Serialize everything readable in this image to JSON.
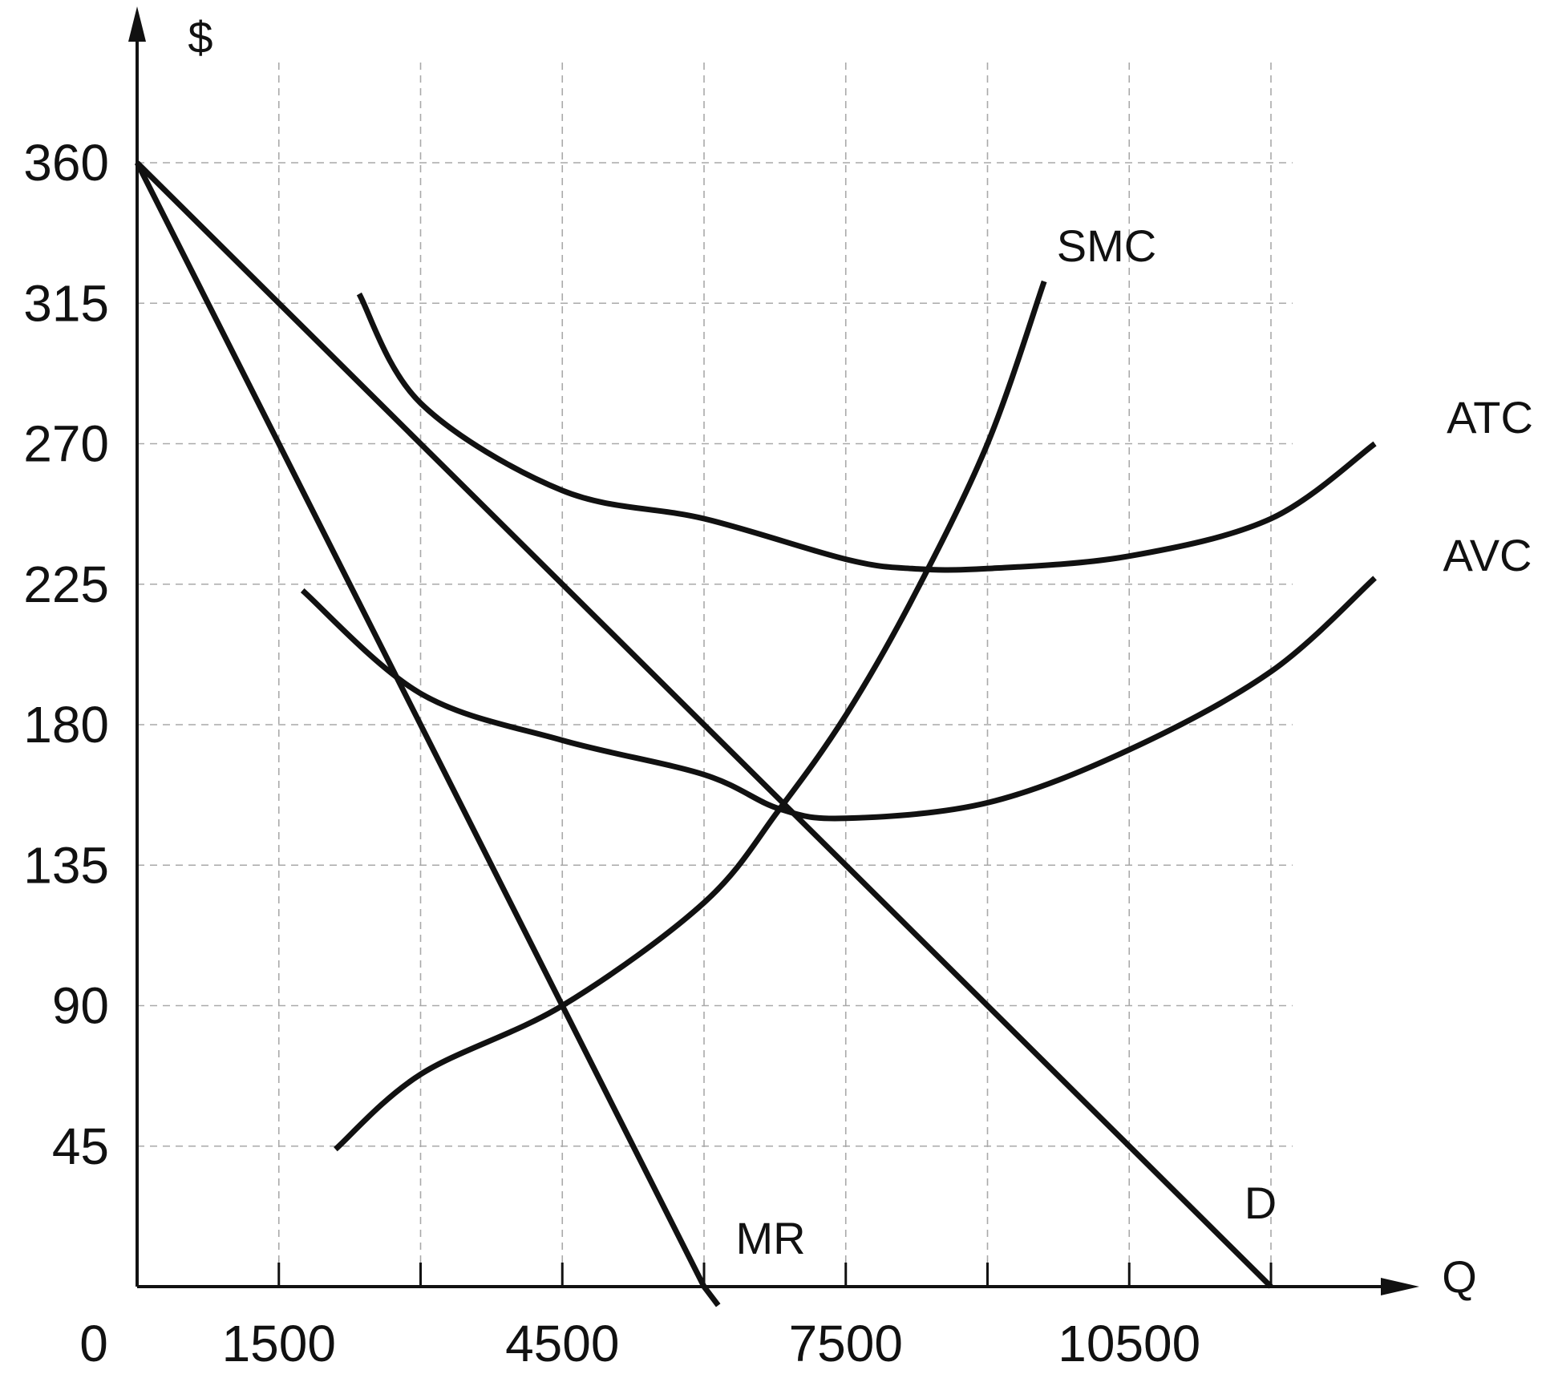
{
  "chart_data": {
    "type": "line",
    "title": "",
    "ylabel": "$",
    "xlabel": "Q",
    "origin_label": "0",
    "xlim": [
      0,
      13500
    ],
    "ylim": [
      0,
      400
    ],
    "x_gridlines": [
      1500,
      3000,
      4500,
      6000,
      7500,
      9000,
      10500,
      12000
    ],
    "y_gridlines": [
      45,
      90,
      135,
      180,
      225,
      270,
      315,
      360
    ],
    "x_tick_labels": [
      "1500",
      "4500",
      "7500",
      "10500"
    ],
    "y_tick_labels": [
      "360",
      "315",
      "270",
      "225",
      "180",
      "135",
      "90",
      "45"
    ],
    "grid": true,
    "series": [
      {
        "name": "D",
        "shape": "line",
        "points": [
          [
            0,
            360
          ],
          [
            12000,
            0
          ]
        ]
      },
      {
        "name": "MR",
        "shape": "line",
        "points": [
          [
            0,
            360
          ],
          [
            6000,
            0
          ],
          [
            6150,
            -6
          ]
        ]
      },
      {
        "name": "SMC",
        "shape": "curve",
        "points": [
          [
            2100,
            44
          ],
          [
            3000,
            68
          ],
          [
            4500,
            90
          ],
          [
            6000,
            123
          ],
          [
            6800,
            153
          ],
          [
            7500,
            183
          ],
          [
            8200,
            220
          ],
          [
            9000,
            270
          ],
          [
            9600,
            322
          ]
        ]
      },
      {
        "name": "ATC",
        "shape": "curve",
        "points": [
          [
            2350,
            318
          ],
          [
            3000,
            283
          ],
          [
            4500,
            255
          ],
          [
            6000,
            246
          ],
          [
            7500,
            233
          ],
          [
            8200,
            230
          ],
          [
            9000,
            230
          ],
          [
            10500,
            234
          ],
          [
            12000,
            246
          ],
          [
            13100,
            270
          ]
        ]
      },
      {
        "name": "AVC",
        "shape": "curve",
        "points": [
          [
            1750,
            223
          ],
          [
            3000,
            190
          ],
          [
            4500,
            175
          ],
          [
            6000,
            164
          ],
          [
            6800,
            153
          ],
          [
            7500,
            150
          ],
          [
            9000,
            155
          ],
          [
            10500,
            172
          ],
          [
            12000,
            197
          ],
          [
            13100,
            227
          ]
        ]
      }
    ]
  }
}
